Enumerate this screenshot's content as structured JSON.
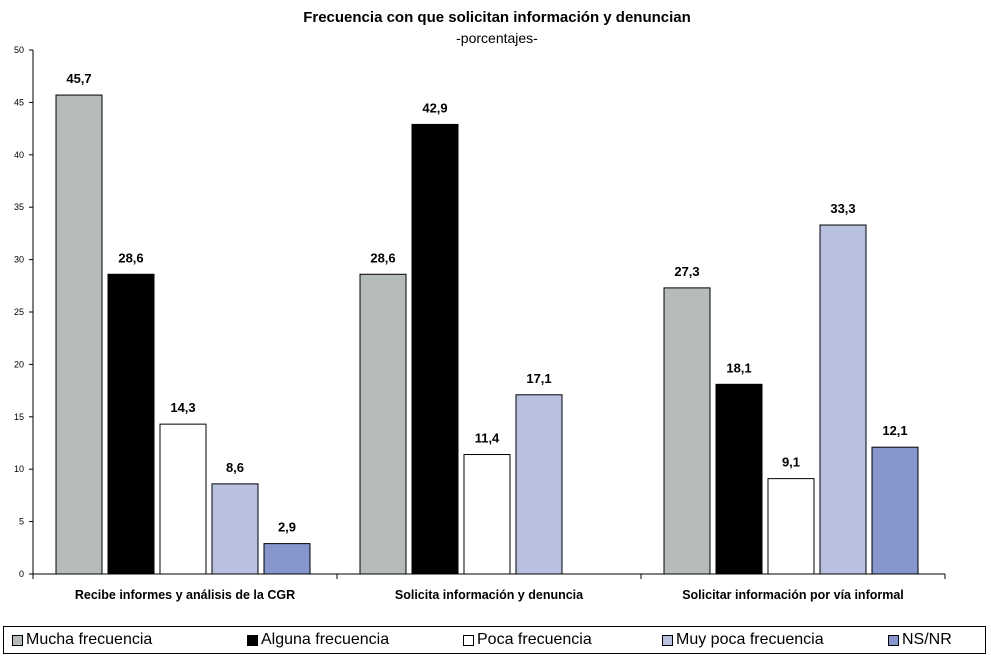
{
  "chart_data": {
    "type": "bar",
    "title": "Frecuencia con que solicitan información y denuncian",
    "subtitle": "-porcentajes-",
    "categories": [
      "Recibe informes y análisis de la CGR",
      "Solicita información y denuncia",
      "Solicitar información por vía informal"
    ],
    "series": [
      {
        "name": "Mucha frecuencia",
        "color": "#b6bcbc",
        "values": [
          45.7,
          28.6,
          27.3
        ],
        "labels": [
          "45,7",
          "28,6",
          "27,3"
        ]
      },
      {
        "name": "Alguna frecuencia",
        "color": "#000000",
        "values": [
          28.6,
          42.9,
          18.1
        ],
        "labels": [
          "28,6",
          "42,9",
          "18,1"
        ]
      },
      {
        "name": "Poca frecuencia",
        "color": "#ffffff",
        "values": [
          14.3,
          11.4,
          9.1
        ],
        "labels": [
          "14,3",
          "11,4",
          "9,1"
        ]
      },
      {
        "name": "Muy poca frecuencia",
        "color": "#b8c1e0",
        "values": [
          8.6,
          17.1,
          33.3
        ],
        "labels": [
          "8,6",
          "17,1",
          "33,3"
        ]
      },
      {
        "name": "NS/NR",
        "color": "#8796cc",
        "values": [
          2.9,
          null,
          12.1
        ],
        "labels": [
          "2,9",
          "",
          "12,1"
        ]
      }
    ],
    "ylim": [
      0,
      50
    ],
    "yticks": [
      0,
      5,
      10,
      15,
      20,
      25,
      30,
      35,
      40,
      45,
      50
    ],
    "xlabel": "",
    "ylabel": "",
    "grid": false,
    "legend_position": "bottom"
  }
}
